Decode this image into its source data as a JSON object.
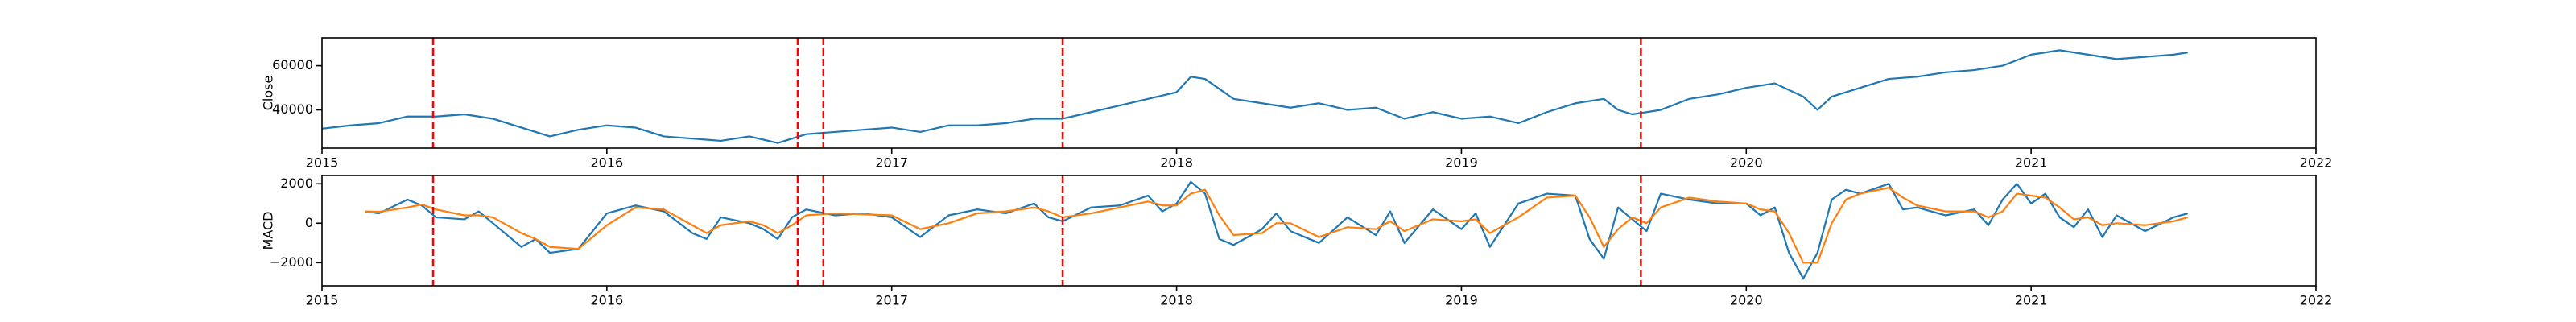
{
  "chart_data": [
    {
      "type": "line",
      "ylabel": "Close",
      "x": [
        2015.0,
        2015.1,
        2015.2,
        2015.3,
        2015.4,
        2015.5,
        2015.6,
        2015.7,
        2015.8,
        2015.9,
        2016.0,
        2016.1,
        2016.2,
        2016.3,
        2016.4,
        2016.5,
        2016.6,
        2016.7,
        2016.8,
        2016.9,
        2017.0,
        2017.1,
        2017.2,
        2017.3,
        2017.4,
        2017.5,
        2017.6,
        2017.7,
        2017.8,
        2017.9,
        2018.0,
        2018.05,
        2018.1,
        2018.2,
        2018.3,
        2018.4,
        2018.5,
        2018.6,
        2018.7,
        2018.8,
        2018.9,
        2019.0,
        2019.1,
        2019.2,
        2019.3,
        2019.4,
        2019.5,
        2019.55,
        2019.6,
        2019.7,
        2019.8,
        2019.9,
        2020.0,
        2020.1,
        2020.2,
        2020.25,
        2020.3,
        2020.4,
        2020.5,
        2020.6,
        2020.7,
        2020.8,
        2020.9,
        2021.0,
        2021.1,
        2021.2,
        2021.3,
        2021.4,
        2021.5,
        2021.55
      ],
      "series": [
        {
          "color": "#1f77b4",
          "values": [
            31500,
            33000,
            34000,
            37000,
            37000,
            38000,
            36000,
            32000,
            28000,
            31000,
            33000,
            32000,
            28000,
            27000,
            26000,
            28000,
            25000,
            29000,
            30000,
            31000,
            32000,
            30000,
            33000,
            33000,
            34000,
            36000,
            36000,
            39000,
            42000,
            45000,
            48000,
            55000,
            54000,
            45000,
            43000,
            41000,
            43000,
            40000,
            41000,
            36000,
            39000,
            36000,
            37000,
            34000,
            39000,
            43000,
            45000,
            40000,
            38000,
            40000,
            45000,
            47000,
            50000,
            52000,
            46000,
            40000,
            46000,
            50000,
            54000,
            55000,
            57000,
            58000,
            60000,
            65000,
            67000,
            65000,
            63000,
            64000,
            65000,
            66000
          ]
        }
      ],
      "xlim": [
        2015,
        2022
      ],
      "xticks": [
        2015,
        2016,
        2017,
        2018,
        2019,
        2020,
        2021,
        2022
      ],
      "ylim": [
        22700,
        72600
      ],
      "yticks": [
        40000,
        60000
      ],
      "vlines": [
        2015.39,
        2016.67,
        2016.76,
        2017.6,
        2019.63
      ],
      "vline_color": "#ff0000"
    },
    {
      "type": "line",
      "ylabel": "MACD",
      "x": [
        2015.15,
        2015.2,
        2015.3,
        2015.35,
        2015.4,
        2015.5,
        2015.55,
        2015.6,
        2015.7,
        2015.75,
        2015.8,
        2015.9,
        2016.0,
        2016.1,
        2016.2,
        2016.3,
        2016.35,
        2016.4,
        2016.5,
        2016.55,
        2016.6,
        2016.65,
        2016.7,
        2016.8,
        2016.9,
        2017.0,
        2017.1,
        2017.2,
        2017.3,
        2017.4,
        2017.5,
        2017.55,
        2017.6,
        2017.7,
        2017.8,
        2017.9,
        2017.95,
        2018.0,
        2018.05,
        2018.1,
        2018.15,
        2018.2,
        2018.3,
        2018.35,
        2018.4,
        2018.5,
        2018.6,
        2018.7,
        2018.75,
        2018.8,
        2018.9,
        2019.0,
        2019.05,
        2019.1,
        2019.2,
        2019.3,
        2019.4,
        2019.45,
        2019.5,
        2019.55,
        2019.6,
        2019.65,
        2019.7,
        2019.8,
        2019.9,
        2020.0,
        2020.05,
        2020.1,
        2020.15,
        2020.2,
        2020.25,
        2020.3,
        2020.35,
        2020.4,
        2020.5,
        2020.55,
        2020.6,
        2020.7,
        2020.8,
        2020.85,
        2020.9,
        2020.95,
        2021.0,
        2021.05,
        2021.1,
        2021.15,
        2021.2,
        2021.25,
        2021.3,
        2021.4,
        2021.5,
        2021.55
      ],
      "series": [
        {
          "color": "#1f77b4",
          "values": [
            600,
            500,
            1200,
            900,
            300,
            200,
            600,
            0,
            -1200,
            -800,
            -1500,
            -1300,
            500,
            900,
            600,
            -500,
            -800,
            300,
            0,
            -300,
            -800,
            300,
            700,
            400,
            500,
            300,
            -700,
            400,
            700,
            500,
            1000,
            300,
            100,
            800,
            900,
            1400,
            600,
            1000,
            2100,
            1500,
            -800,
            -1100,
            -300,
            500,
            -400,
            -1000,
            300,
            -600,
            600,
            -1000,
            700,
            -300,
            500,
            -1200,
            1000,
            1500,
            1400,
            -800,
            -1800,
            800,
            200,
            -400,
            1500,
            1200,
            1000,
            1000,
            400,
            800,
            -1500,
            -2800,
            -1500,
            1200,
            1700,
            1500,
            2000,
            700,
            800,
            400,
            700,
            -100,
            1200,
            2000,
            1000,
            1500,
            300,
            -200,
            700,
            -700,
            400,
            -400,
            300,
            500
          ]
        },
        {
          "color": "#ff7f0e",
          "values": [
            600,
            580,
            800,
            950,
            700,
            400,
            400,
            300,
            -500,
            -800,
            -1200,
            -1300,
            -100,
            800,
            700,
            -100,
            -500,
            -100,
            100,
            -100,
            -500,
            -100,
            400,
            500,
            450,
            400,
            -300,
            0,
            500,
            600,
            800,
            600,
            300,
            500,
            800,
            1100,
            900,
            900,
            1500,
            1700,
            400,
            -600,
            -500,
            0,
            0,
            -700,
            -200,
            -300,
            100,
            -400,
            200,
            100,
            200,
            -500,
            300,
            1300,
            1400,
            300,
            -1200,
            -300,
            300,
            0,
            800,
            1300,
            1100,
            1000,
            700,
            600,
            -500,
            -2000,
            -2000,
            0,
            1200,
            1500,
            1800,
            1300,
            900,
            600,
            600,
            300,
            600,
            1500,
            1400,
            1300,
            800,
            200,
            300,
            -100,
            0,
            -100,
            100,
            300
          ]
        }
      ],
      "xlim": [
        2015,
        2022
      ],
      "xticks": [
        2015,
        2016,
        2017,
        2018,
        2019,
        2020,
        2021,
        2022
      ],
      "ylim": [
        -3170,
        2420
      ],
      "yticks": [
        {
          "value": -2000,
          "label": "−2000"
        },
        0,
        2000
      ],
      "vlines": [
        2015.39,
        2016.67,
        2016.76,
        2017.6,
        2019.63
      ],
      "vline_color": "#ff0000"
    }
  ]
}
